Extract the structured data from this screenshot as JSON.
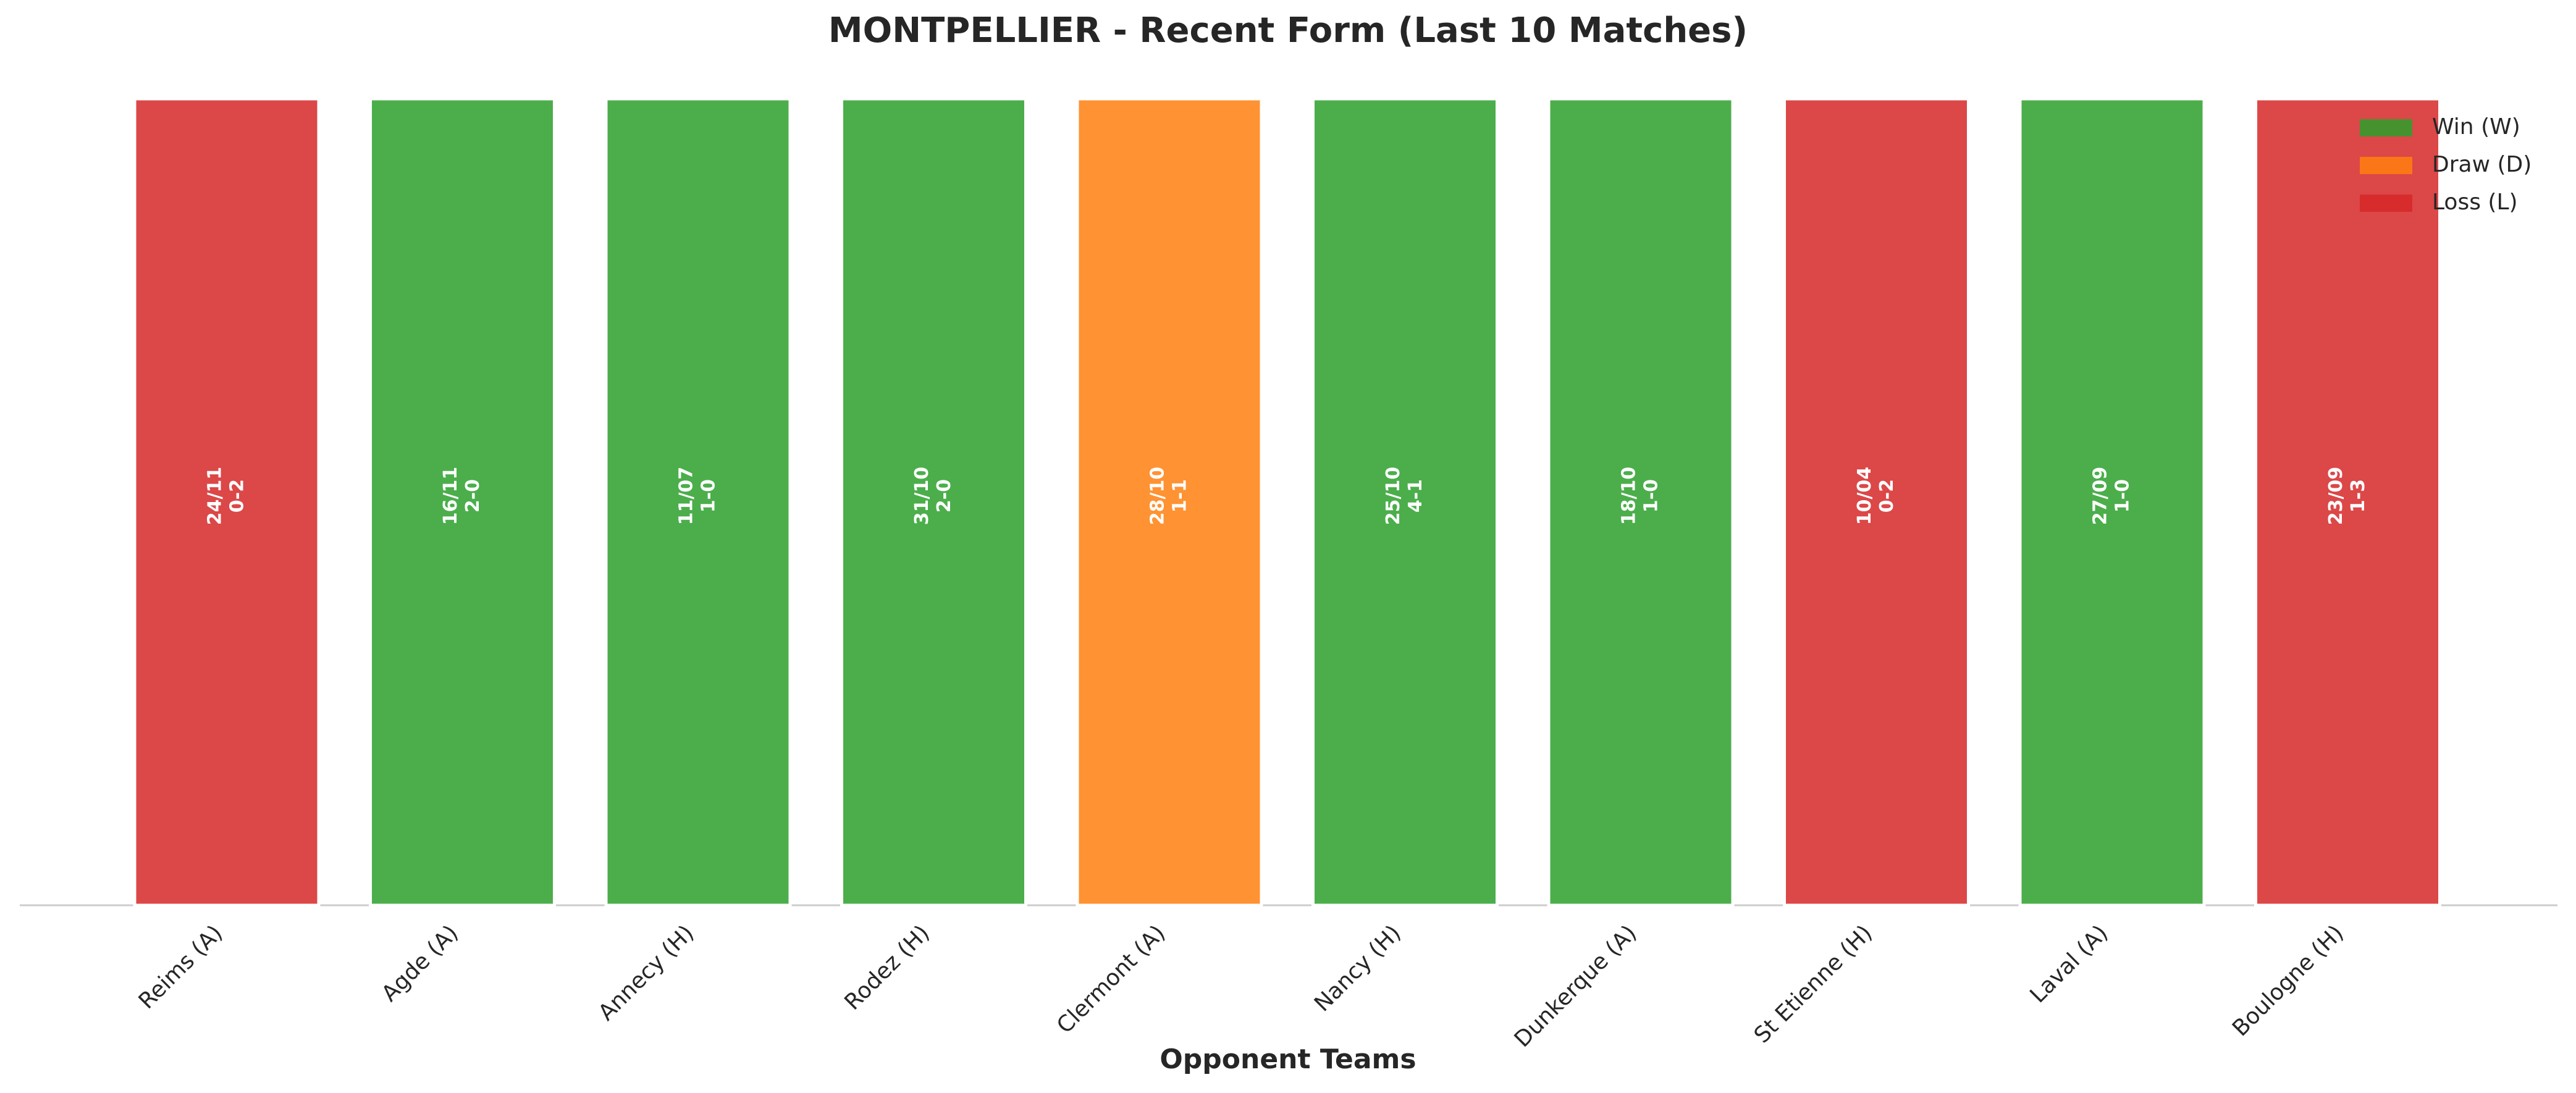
{
  "chart_data": {
    "type": "bar",
    "title": "MONTPELLIER - Recent Form (Last 10 Matches)",
    "xlabel": "Opponent Teams",
    "categories": [
      "Reims (A)",
      "Agde (A)",
      "Annecy (H)",
      "Rodez (H)",
      "Clermont (A)",
      "Nancy (H)",
      "Dunkerque (A)",
      "St Etienne (H)",
      "Laval (A)",
      "Boulogne (H)"
    ],
    "values": [
      1,
      1,
      1,
      1,
      1,
      1,
      1,
      1,
      1,
      1
    ],
    "dates": [
      "24/11",
      "16/11",
      "11/07",
      "31/10",
      "28/10",
      "25/10",
      "18/10",
      "10/04",
      "27/09",
      "23/09"
    ],
    "scores": [
      "0-2",
      "2-0",
      "1-0",
      "2-0",
      "1-1",
      "4-1",
      "1-0",
      "0-2",
      "1-0",
      "1-3"
    ],
    "colors": [
      "#d62728",
      "#2ca02c",
      "#2ca02c",
      "#2ca02c",
      "#ff7f0e",
      "#2ca02c",
      "#2ca02c",
      "#d62728",
      "#2ca02c",
      "#d62728"
    ],
    "ylim": [
      0,
      1
    ],
    "legend": [
      {
        "name": "Win (W)",
        "color": "#2ca02c"
      },
      {
        "name": "Draw (D)",
        "color": "#ff7f0e"
      },
      {
        "name": "Loss (L)",
        "color": "#d62728"
      }
    ],
    "legend_position": "upper right"
  }
}
